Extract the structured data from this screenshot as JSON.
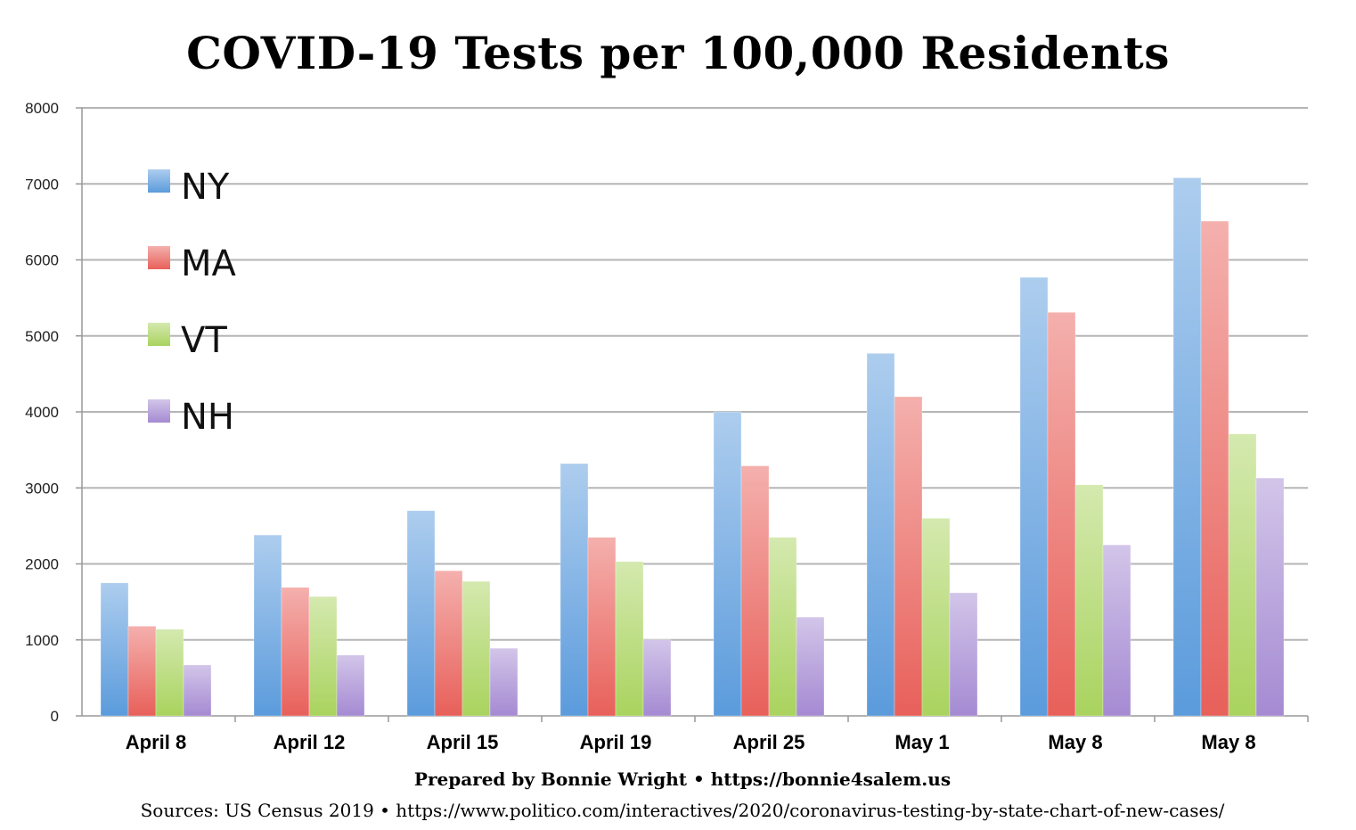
{
  "chart_data": {
    "type": "bar",
    "title": "COVID-19 Tests per 100,000 Residents",
    "xlabel": "",
    "ylabel": "",
    "ylim": [
      0,
      8000
    ],
    "yticks": [
      0,
      1000,
      2000,
      3000,
      4000,
      5000,
      6000,
      7000,
      8000
    ],
    "categories": [
      "April 8",
      "April 12",
      "April 15",
      "April 19",
      "April 25",
      "May 1",
      "May 8",
      "May 8"
    ],
    "series": [
      {
        "name": "NY",
        "values": [
          1750,
          2380,
          2700,
          3320,
          4000,
          4770,
          5770,
          7080
        ],
        "color": "#5b9bdc"
      },
      {
        "name": "MA",
        "values": [
          1180,
          1690,
          1910,
          2350,
          3290,
          4200,
          5310,
          6510
        ],
        "color": "#e8605a"
      },
      {
        "name": "VT",
        "values": [
          1140,
          1570,
          1770,
          2030,
          2350,
          2600,
          3040,
          3710
        ],
        "color": "#a9d35e"
      },
      {
        "name": "NH",
        "values": [
          670,
          800,
          890,
          1000,
          1300,
          1620,
          2250,
          3130
        ],
        "color": "#a58ad2"
      }
    ],
    "grid": true,
    "legend_position": "top-left"
  },
  "footer": {
    "credit": "Prepared by Bonnie Wright • https://bonnie4salem.us",
    "sources": "Sources: US Census 2019 • https://www.politico.com/interactives/2020/coronavirus-testing-by-state-chart-of-new-cases/"
  }
}
